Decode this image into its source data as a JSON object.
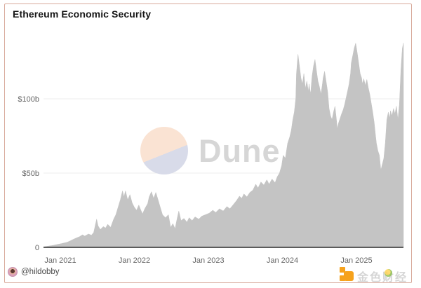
{
  "header": {
    "title": "Ethereum Economic Security"
  },
  "watermark": {
    "brand": "Dune"
  },
  "footer": {
    "author_handle": "@hildobby",
    "right_watermark_text": "金色财经"
  },
  "colors": {
    "card_border": "#d9ab9c",
    "area_fill": "#c4c4c4",
    "grid_line": "#ececec",
    "axis_line": "#2b2b2b",
    "tick_text": "#666666",
    "dune_circle_top": "#fae3d3",
    "dune_circle_bottom": "#d8dbe9",
    "dune_text": "#d6d6d6",
    "jinse_orange": "#f6a21d",
    "title_text": "#161616",
    "handle_text": "#4a4a4a"
  },
  "chart_data": {
    "type": "area",
    "title": "Ethereum Economic Security",
    "xlabel": "",
    "ylabel": "",
    "unit": "USD billions",
    "grid": "horizontal",
    "legend": "none",
    "x_domain_decimal_years": [
      2020.77,
      2025.635
    ],
    "ylim": [
      0,
      152
    ],
    "x_axis": {
      "ticks": [
        {
          "t": 2021,
          "label": "Jan 2021"
        },
        {
          "t": 2022,
          "label": "Jan 2022"
        },
        {
          "t": 2023,
          "label": "Jan 2023"
        },
        {
          "t": 2024,
          "label": "Jan 2024"
        },
        {
          "t": 2025,
          "label": "Jan 2025"
        }
      ]
    },
    "y_axis": {
      "ticks": [
        {
          "v": 0,
          "label": "0"
        },
        {
          "v": 50,
          "label": "$50b"
        },
        {
          "v": 100,
          "label": "$100b"
        }
      ]
    },
    "series": [
      {
        "name": "Ethereum economic security ($b)",
        "points": [
          [
            2020.77,
            0.3
          ],
          [
            2020.83,
            0.8
          ],
          [
            2020.9,
            1.3
          ],
          [
            2020.96,
            2.0
          ],
          [
            2021.02,
            2.6
          ],
          [
            2021.09,
            3.4
          ],
          [
            2021.13,
            4.3
          ],
          [
            2021.18,
            5.5
          ],
          [
            2021.22,
            6.4
          ],
          [
            2021.26,
            7.2
          ],
          [
            2021.3,
            8.5
          ],
          [
            2021.33,
            7.6
          ],
          [
            2021.38,
            9.0
          ],
          [
            2021.42,
            8.2
          ],
          [
            2021.45,
            10.0
          ],
          [
            2021.49,
            19.0
          ],
          [
            2021.51,
            14.5
          ],
          [
            2021.54,
            12.0
          ],
          [
            2021.58,
            14.0
          ],
          [
            2021.61,
            13.0
          ],
          [
            2021.64,
            15.5
          ],
          [
            2021.68,
            13.5
          ],
          [
            2021.72,
            19.0
          ],
          [
            2021.75,
            22.0
          ],
          [
            2021.78,
            27.0
          ],
          [
            2021.81,
            32.0
          ],
          [
            2021.84,
            38.0
          ],
          [
            2021.86,
            34.0
          ],
          [
            2021.88,
            38.0
          ],
          [
            2021.91,
            32.0
          ],
          [
            2021.94,
            35.5
          ],
          [
            2021.97,
            30.0
          ],
          [
            2022.0,
            27.0
          ],
          [
            2022.03,
            25.0
          ],
          [
            2022.06,
            28.5
          ],
          [
            2022.08,
            26.0
          ],
          [
            2022.11,
            22.5
          ],
          [
            2022.14,
            26.0
          ],
          [
            2022.18,
            29.5
          ],
          [
            2022.2,
            34.0
          ],
          [
            2022.23,
            37.5
          ],
          [
            2022.26,
            33.0
          ],
          [
            2022.29,
            37.0
          ],
          [
            2022.32,
            32.0
          ],
          [
            2022.35,
            27.0
          ],
          [
            2022.38,
            22.0
          ],
          [
            2022.42,
            20.0
          ],
          [
            2022.46,
            22.0
          ],
          [
            2022.49,
            13.5
          ],
          [
            2022.52,
            16.0
          ],
          [
            2022.55,
            12.5
          ],
          [
            2022.57,
            17.5
          ],
          [
            2022.6,
            24.5
          ],
          [
            2022.63,
            18.0
          ],
          [
            2022.67,
            19.5
          ],
          [
            2022.71,
            17.0
          ],
          [
            2022.74,
            20.0
          ],
          [
            2022.78,
            18.0
          ],
          [
            2022.82,
            20.5
          ],
          [
            2022.87,
            19.0
          ],
          [
            2022.91,
            21.0
          ],
          [
            2022.96,
            22.0
          ],
          [
            2023.01,
            23.0
          ],
          [
            2023.06,
            25.0
          ],
          [
            2023.1,
            23.5
          ],
          [
            2023.15,
            26.0
          ],
          [
            2023.2,
            24.5
          ],
          [
            2023.25,
            27.5
          ],
          [
            2023.29,
            26.0
          ],
          [
            2023.34,
            29.0
          ],
          [
            2023.38,
            31.5
          ],
          [
            2023.42,
            34.5
          ],
          [
            2023.45,
            33.0
          ],
          [
            2023.48,
            36.0
          ],
          [
            2023.52,
            34.0
          ],
          [
            2023.56,
            37.0
          ],
          [
            2023.6,
            38.5
          ],
          [
            2023.64,
            42.5
          ],
          [
            2023.67,
            40.0
          ],
          [
            2023.71,
            44.0
          ],
          [
            2023.75,
            42.0
          ],
          [
            2023.79,
            45.5
          ],
          [
            2023.82,
            42.5
          ],
          [
            2023.86,
            46.0
          ],
          [
            2023.9,
            43.5
          ],
          [
            2023.93,
            47.5
          ],
          [
            2023.96,
            50.0
          ],
          [
            2023.99,
            55.0
          ],
          [
            2024.01,
            62.0
          ],
          [
            2024.04,
            60.0
          ],
          [
            2024.07,
            70.0
          ],
          [
            2024.1,
            74.5
          ],
          [
            2024.12,
            79.0
          ],
          [
            2024.14,
            86.0
          ],
          [
            2024.16,
            91.0
          ],
          [
            2024.18,
            100.0
          ],
          [
            2024.19,
            117.0
          ],
          [
            2024.21,
            130.0
          ],
          [
            2024.23,
            122.0
          ],
          [
            2024.25,
            114.0
          ],
          [
            2024.27,
            110.0
          ],
          [
            2024.29,
            117.0
          ],
          [
            2024.31,
            107.0
          ],
          [
            2024.33,
            112.0
          ],
          [
            2024.35,
            105.0
          ],
          [
            2024.36,
            110.0
          ],
          [
            2024.38,
            103.0
          ],
          [
            2024.4,
            115.0
          ],
          [
            2024.42,
            122.0
          ],
          [
            2024.44,
            126.5
          ],
          [
            2024.46,
            119.0
          ],
          [
            2024.48,
            112.0
          ],
          [
            2024.5,
            108.0
          ],
          [
            2024.52,
            103.0
          ],
          [
            2024.54,
            110.0
          ],
          [
            2024.55,
            114.0
          ],
          [
            2024.57,
            118.5
          ],
          [
            2024.59,
            112.0
          ],
          [
            2024.61,
            105.0
          ],
          [
            2024.63,
            93.5
          ],
          [
            2024.65,
            88.5
          ],
          [
            2024.67,
            86.0
          ],
          [
            2024.69,
            91.0
          ],
          [
            2024.71,
            95.0
          ],
          [
            2024.73,
            86.0
          ],
          [
            2024.74,
            80.0
          ],
          [
            2024.76,
            84.0
          ],
          [
            2024.78,
            87.0
          ],
          [
            2024.8,
            90.0
          ],
          [
            2024.82,
            92.5
          ],
          [
            2024.84,
            96.0
          ],
          [
            2024.86,
            100.5
          ],
          [
            2024.88,
            105.0
          ],
          [
            2024.9,
            110.0
          ],
          [
            2024.92,
            117.0
          ],
          [
            2024.93,
            124.0
          ],
          [
            2024.95,
            129.0
          ],
          [
            2024.97,
            134.0
          ],
          [
            2024.99,
            137.5
          ],
          [
            2025.01,
            131.0
          ],
          [
            2025.03,
            124.0
          ],
          [
            2025.05,
            117.0
          ],
          [
            2025.07,
            114.0
          ],
          [
            2025.08,
            110.0
          ],
          [
            2025.1,
            113.5
          ],
          [
            2025.12,
            109.0
          ],
          [
            2025.14,
            113.0
          ],
          [
            2025.16,
            107.5
          ],
          [
            2025.18,
            103.0
          ],
          [
            2025.2,
            97.0
          ],
          [
            2025.22,
            91.0
          ],
          [
            2025.24,
            84.0
          ],
          [
            2025.26,
            74.5
          ],
          [
            2025.27,
            70.0
          ],
          [
            2025.29,
            65.0
          ],
          [
            2025.31,
            62.0
          ],
          [
            2025.33,
            52.0
          ],
          [
            2025.35,
            56.0
          ],
          [
            2025.37,
            60.0
          ],
          [
            2025.39,
            70.0
          ],
          [
            2025.41,
            86.0
          ],
          [
            2025.43,
            91.0
          ],
          [
            2025.45,
            87.0
          ],
          [
            2025.46,
            92.0
          ],
          [
            2025.48,
            88.5
          ],
          [
            2025.5,
            93.5
          ],
          [
            2025.52,
            90.0
          ],
          [
            2025.54,
            95.0
          ],
          [
            2025.56,
            86.0
          ],
          [
            2025.58,
            96.0
          ],
          [
            2025.6,
            119.0
          ],
          [
            2025.62,
            134.0
          ],
          [
            2025.635,
            137.5
          ]
        ]
      }
    ]
  }
}
